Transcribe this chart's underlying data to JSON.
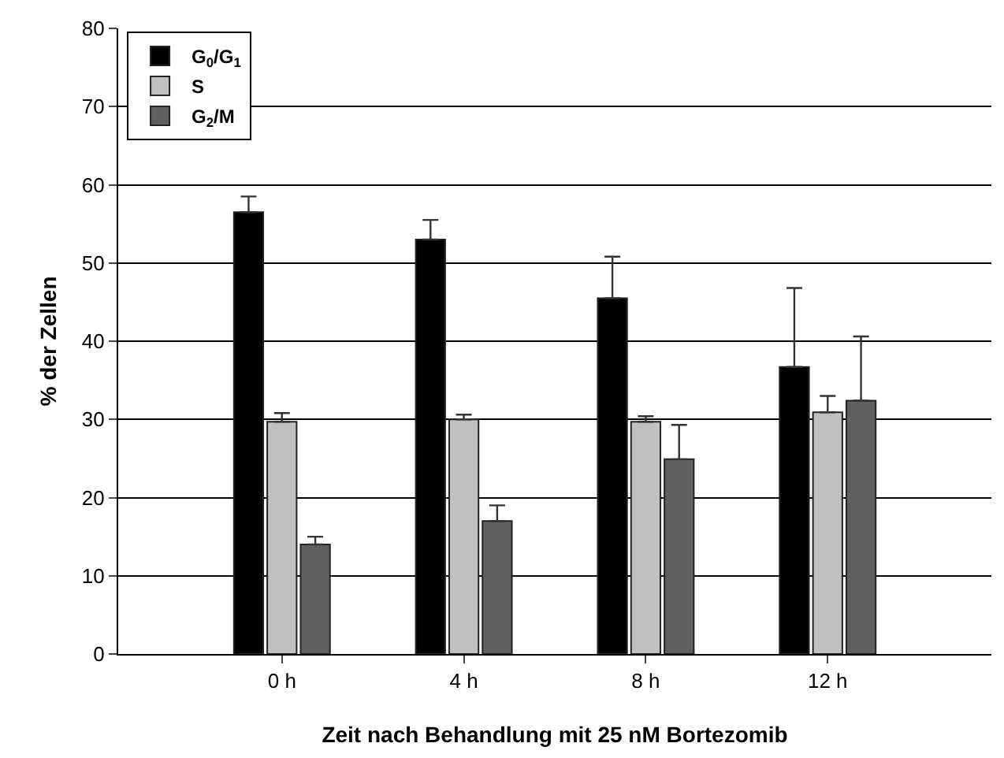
{
  "chart_data": {
    "type": "bar",
    "xlabel": "Zeit nach Behandlung mit 25 nM Bortezomib",
    "ylabel": "% der Zellen",
    "categories": [
      "0 h",
      "4 h",
      "8 h",
      "12 h"
    ],
    "series": [
      {
        "name": "G$_{0}$/G$_{1}$",
        "color": "#000000",
        "values": [
          56.5,
          53,
          45.5,
          36.7
        ],
        "errors": [
          [
            56.5,
            58.5
          ],
          [
            53,
            55.5
          ],
          [
            45.5,
            50.8
          ],
          [
            36.7,
            46.8
          ]
        ]
      },
      {
        "name": "S",
        "color": "#c0c0c0",
        "values": [
          29.7,
          30,
          29.7,
          30.9
        ],
        "errors": [
          [
            29.7,
            30.8
          ],
          [
            30,
            30.6
          ],
          [
            29.7,
            30.4
          ],
          [
            30.9,
            33
          ]
        ]
      },
      {
        "name": "G$_{2}$/M",
        "color": "#606060",
        "values": [
          14,
          17,
          24.9,
          32.4
        ],
        "errors": [
          [
            14,
            15
          ],
          [
            17,
            19
          ],
          [
            24.9,
            29.3
          ],
          [
            32.4,
            40.6
          ]
        ]
      }
    ],
    "ylim": [
      0,
      80
    ],
    "yticks": [
      0,
      10,
      20,
      30,
      40,
      50,
      60,
      70,
      80
    ],
    "grid": "y",
    "legend": "top left"
  }
}
